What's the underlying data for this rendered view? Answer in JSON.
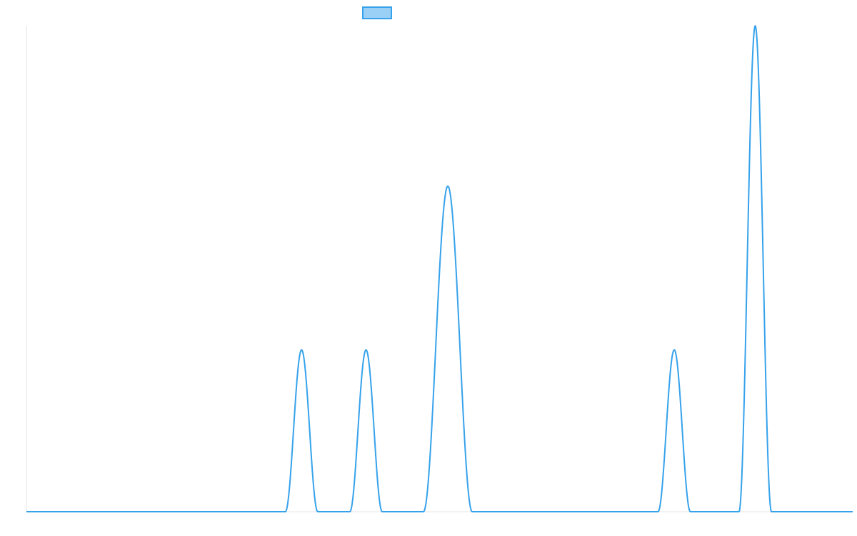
{
  "colors": {
    "line": "#36a2eb",
    "legend_fill": "#9ad0f5",
    "axis": "#e6e6e6",
    "background": "#ffffff"
  },
  "chart_data": {
    "type": "line",
    "title": "",
    "xlabel": "",
    "ylabel": "",
    "grid": false,
    "legend": {
      "placement": "top-center",
      "entries": [
        {
          "label": ""
        }
      ]
    },
    "x_range": [
      0,
      1
    ],
    "y_range": [
      0,
      1
    ],
    "baseline": 0,
    "series": [
      {
        "style": "line",
        "peaks": [
          {
            "center": 0.333,
            "height": 0.333,
            "halfwidth": 0.0196
          },
          {
            "center": 0.411,
            "height": 0.333,
            "halfwidth": 0.0196
          },
          {
            "center": 0.51,
            "height": 0.67,
            "halfwidth": 0.0295
          },
          {
            "center": 0.784,
            "height": 0.333,
            "halfwidth": 0.0196
          },
          {
            "center": 0.882,
            "height": 1.0,
            "halfwidth": 0.0196
          }
        ]
      }
    ]
  }
}
